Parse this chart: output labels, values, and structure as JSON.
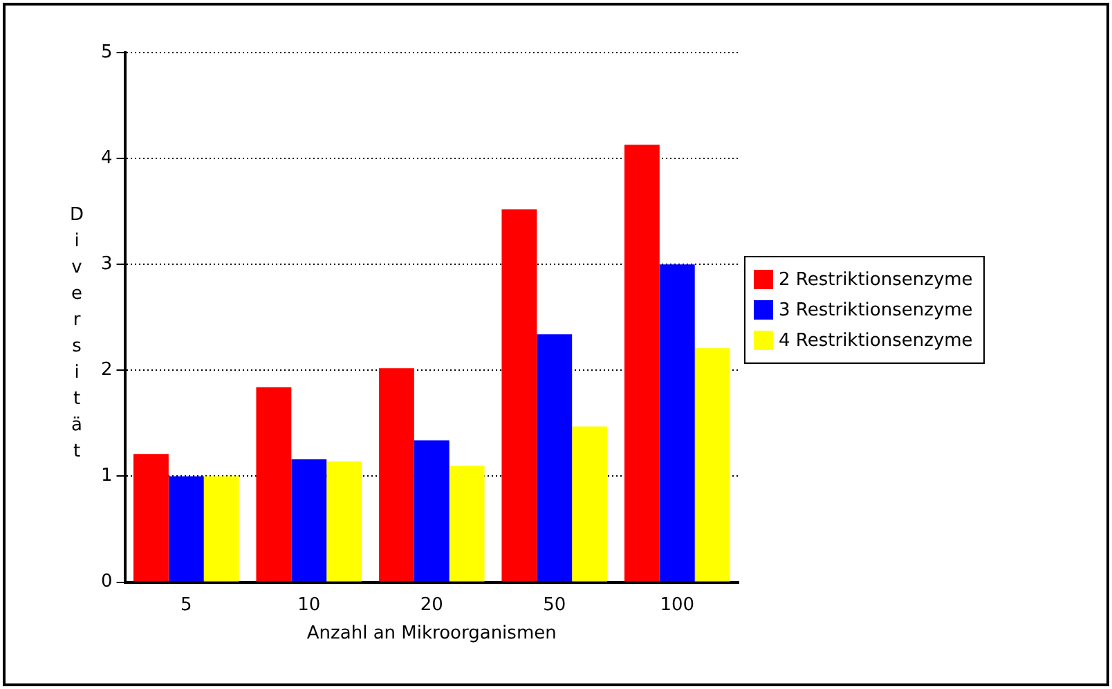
{
  "chart_data": {
    "type": "bar",
    "xlabel": "Anzahl an Mikroorganismen",
    "ylabel": "Diversität",
    "categories": [
      "5",
      "10",
      "20",
      "50",
      "100"
    ],
    "series": [
      {
        "name": "2 Restriktionsenzyme",
        "color": "#ff0000",
        "values": [
          1.21,
          1.84,
          2.02,
          3.52,
          4.13
        ]
      },
      {
        "name": "3 Restriktionsenzyme",
        "color": "#0000ff",
        "values": [
          1.0,
          1.16,
          1.34,
          2.34,
          3.0
        ]
      },
      {
        "name": "4 Restriktionsenzyme",
        "color": "#ffff00",
        "values": [
          1.0,
          1.14,
          1.1,
          1.47,
          2.21
        ]
      }
    ],
    "ylim": [
      0,
      5
    ],
    "yticks": [
      0,
      1,
      2,
      3,
      4,
      5
    ],
    "grid": "y",
    "legend": "right"
  }
}
